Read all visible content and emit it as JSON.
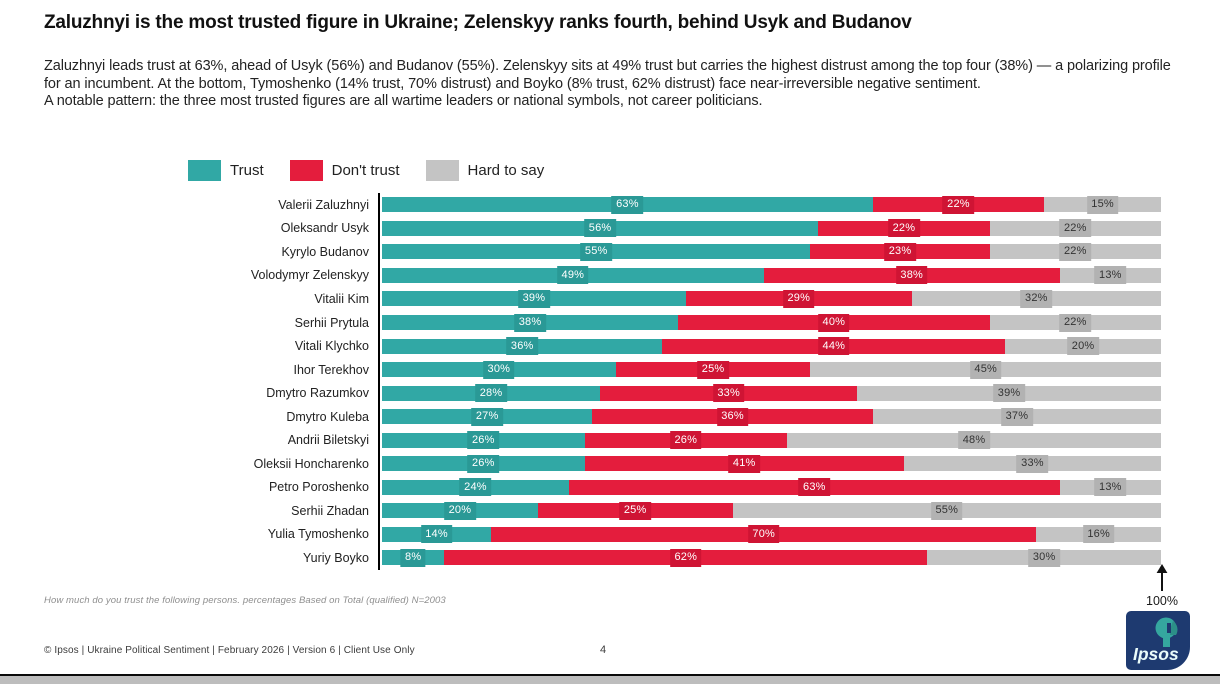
{
  "title": "Zaluzhnyi is the most trusted figure in Ukraine; Zelenskyy ranks fourth, behind Usyk and Budanov",
  "subtitle": {
    "para1": "Zaluzhnyi leads trust at 63%, ahead of Usyk (56%) and Budanov (55%). Zelenskyy sits at 49% trust but carries the highest distrust among the top four (38%) — a polarizing profile for an incumbent. At the bottom, Tymoshenko (14% trust, 70% distrust) and Boyko (8% trust, 62% distrust) face near-irreversible negative sentiment.",
    "para2": "A notable pattern: the three most trusted figures are all wartime leaders or national symbols, not career politicians."
  },
  "legend": [
    {
      "label": "Trust",
      "color": "#31a8a5"
    },
    {
      "label": "Don't trust",
      "color": "#e41d3d"
    },
    {
      "label": "Hard to say",
      "color": "#c4c4c4"
    }
  ],
  "chart_data": {
    "type": "bar",
    "orientation": "horizontal",
    "stacked": true,
    "xlim": [
      0,
      100
    ],
    "unit": "%",
    "axis_annotation": "100%",
    "categories": [
      "Valerii Zaluzhnyi",
      "Oleksandr Usyk",
      "Kyrylo Budanov",
      "Volodymyr Zelenskyy",
      "Vitalii Kim",
      "Serhii Prytula",
      "Vitali Klychko",
      "Ihor Terekhov",
      "Dmytro Razumkov",
      "Dmytro Kuleba",
      "Andrii Biletskyi",
      "Oleksii Honcharenko",
      "Petro Poroshenko",
      "Serhii Zhadan",
      "Yulia Tymoshenko",
      "Yuriy Boyko"
    ],
    "series": [
      {
        "name": "Trust",
        "color": "#31a8a5",
        "label_box_color": "#2a9996",
        "label_text_color": "#ffffff",
        "values": [
          63,
          56,
          55,
          49,
          39,
          38,
          36,
          30,
          28,
          27,
          26,
          26,
          24,
          20,
          14,
          8
        ]
      },
      {
        "name": "Don't trust",
        "color": "#e41d3d",
        "label_box_color": "#cf1434",
        "label_text_color": "#ffffff",
        "values": [
          22,
          22,
          23,
          38,
          29,
          40,
          44,
          25,
          33,
          36,
          26,
          41,
          63,
          25,
          70,
          62
        ]
      },
      {
        "name": "Hard to say",
        "color": "#c4c4c4",
        "label_box_color": "#b2b2b2",
        "label_text_color": "#333333",
        "values": [
          15,
          22,
          22,
          13,
          32,
          22,
          20,
          45,
          39,
          37,
          48,
          33,
          13,
          55,
          16,
          30
        ]
      }
    ]
  },
  "footnote": "How much do you trust the following persons. percentages Based on Total (qualified) N=2003",
  "footer": {
    "left": "© Ipsos | Ukraine Political Sentiment | February 2026 | Version 6 | Client Use Only",
    "page": "4"
  },
  "logo": {
    "text": "Ipsos",
    "navy": "#1e3a70",
    "teal": "#35a79f"
  }
}
